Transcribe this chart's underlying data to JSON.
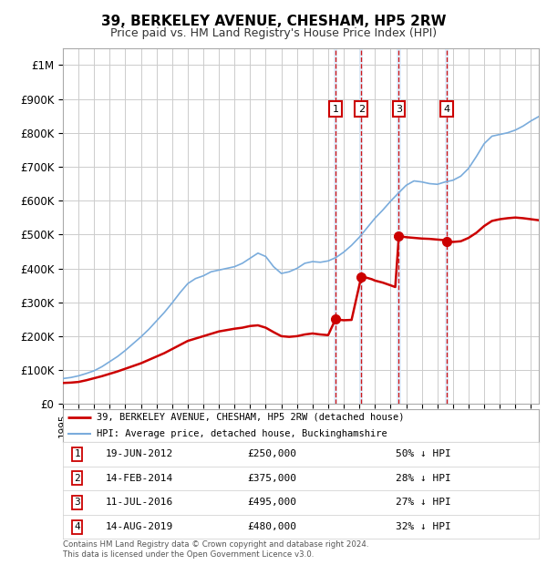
{
  "title": "39, BERKELEY AVENUE, CHESHAM, HP5 2RW",
  "subtitle": "Price paid vs. HM Land Registry's House Price Index (HPI)",
  "xlim_start": 1995.0,
  "xlim_end": 2025.5,
  "ylim": [
    0,
    1050000
  ],
  "yticks": [
    0,
    100000,
    200000,
    300000,
    400000,
    500000,
    600000,
    700000,
    800000,
    900000,
    1000000
  ],
  "ytick_labels": [
    "£0",
    "£100K",
    "£200K",
    "£300K",
    "£400K",
    "£500K",
    "£600K",
    "£700K",
    "£800K",
    "£900K",
    "£1M"
  ],
  "sales": [
    {
      "num": 1,
      "date_decimal": 2012.47,
      "price": 250000,
      "label": "19-JUN-2012",
      "pct": "50% ↓ HPI",
      "price_str": "£250,000"
    },
    {
      "num": 2,
      "date_decimal": 2014.12,
      "price": 375000,
      "label": "14-FEB-2014",
      "pct": "28% ↓ HPI",
      "price_str": "£375,000"
    },
    {
      "num": 3,
      "date_decimal": 2016.53,
      "price": 495000,
      "label": "11-JUL-2016",
      "pct": "27% ↓ HPI",
      "price_str": "£495,000"
    },
    {
      "num": 4,
      "date_decimal": 2019.62,
      "price": 480000,
      "label": "14-AUG-2019",
      "pct": "32% ↓ HPI",
      "price_str": "£480,000"
    }
  ],
  "legend_labels": [
    "39, BERKELEY AVENUE, CHESHAM, HP5 2RW (detached house)",
    "HPI: Average price, detached house, Buckinghamshire"
  ],
  "legend_colors": [
    "#cc0000",
    "#7aacdc"
  ],
  "legend_lws": [
    2.0,
    1.5
  ],
  "footer": "Contains HM Land Registry data © Crown copyright and database right 2024.\nThis data is licensed under the Open Government Licence v3.0.",
  "hpi_color": "#7aacdc",
  "sale_color": "#cc0000",
  "vline_color": "#cc0000",
  "shade_color": "#ddeeff",
  "box_color": "#cc0000",
  "grid_color": "#cccccc",
  "bg_color": "#ffffff",
  "hpi_data": [
    [
      1995.0,
      75000
    ],
    [
      1995.5,
      78000
    ],
    [
      1996.0,
      83000
    ],
    [
      1996.5,
      90000
    ],
    [
      1997.0,
      98000
    ],
    [
      1997.5,
      110000
    ],
    [
      1998.0,
      125000
    ],
    [
      1998.5,
      140000
    ],
    [
      1999.0,
      158000
    ],
    [
      1999.5,
      178000
    ],
    [
      2000.0,
      198000
    ],
    [
      2000.5,
      220000
    ],
    [
      2001.0,
      245000
    ],
    [
      2001.5,
      270000
    ],
    [
      2002.0,
      298000
    ],
    [
      2002.5,
      328000
    ],
    [
      2003.0,
      355000
    ],
    [
      2003.5,
      370000
    ],
    [
      2004.0,
      378000
    ],
    [
      2004.5,
      390000
    ],
    [
      2005.0,
      395000
    ],
    [
      2005.5,
      400000
    ],
    [
      2006.0,
      405000
    ],
    [
      2006.5,
      415000
    ],
    [
      2007.0,
      430000
    ],
    [
      2007.5,
      445000
    ],
    [
      2008.0,
      435000
    ],
    [
      2008.5,
      405000
    ],
    [
      2009.0,
      385000
    ],
    [
      2009.5,
      390000
    ],
    [
      2010.0,
      400000
    ],
    [
      2010.5,
      415000
    ],
    [
      2011.0,
      420000
    ],
    [
      2011.5,
      418000
    ],
    [
      2012.0,
      422000
    ],
    [
      2012.5,
      432000
    ],
    [
      2013.0,
      448000
    ],
    [
      2013.5,
      468000
    ],
    [
      2014.0,
      492000
    ],
    [
      2014.5,
      520000
    ],
    [
      2015.0,
      548000
    ],
    [
      2015.5,
      572000
    ],
    [
      2016.0,
      598000
    ],
    [
      2016.5,
      622000
    ],
    [
      2017.0,
      645000
    ],
    [
      2017.5,
      658000
    ],
    [
      2018.0,
      655000
    ],
    [
      2018.5,
      650000
    ],
    [
      2019.0,
      648000
    ],
    [
      2019.5,
      655000
    ],
    [
      2020.0,
      660000
    ],
    [
      2020.5,
      672000
    ],
    [
      2021.0,
      695000
    ],
    [
      2021.5,
      730000
    ],
    [
      2022.0,
      768000
    ],
    [
      2022.5,
      790000
    ],
    [
      2023.0,
      795000
    ],
    [
      2023.5,
      800000
    ],
    [
      2024.0,
      808000
    ],
    [
      2024.5,
      820000
    ],
    [
      2025.0,
      835000
    ],
    [
      2025.5,
      848000
    ]
  ],
  "sale_data": [
    [
      1995.0,
      62000
    ],
    [
      1995.5,
      63000
    ],
    [
      1996.0,
      65000
    ],
    [
      1996.5,
      70000
    ],
    [
      1997.0,
      76000
    ],
    [
      1997.5,
      82000
    ],
    [
      1998.0,
      89000
    ],
    [
      1998.5,
      96000
    ],
    [
      1999.0,
      104000
    ],
    [
      1999.5,
      112000
    ],
    [
      2000.0,
      120000
    ],
    [
      2000.5,
      130000
    ],
    [
      2001.0,
      140000
    ],
    [
      2001.5,
      150000
    ],
    [
      2002.0,
      162000
    ],
    [
      2002.5,
      174000
    ],
    [
      2003.0,
      186000
    ],
    [
      2003.5,
      193000
    ],
    [
      2004.0,
      200000
    ],
    [
      2004.5,
      207000
    ],
    [
      2005.0,
      214000
    ],
    [
      2005.5,
      218000
    ],
    [
      2006.0,
      222000
    ],
    [
      2006.5,
      225000
    ],
    [
      2007.0,
      230000
    ],
    [
      2007.5,
      232000
    ],
    [
      2008.0,
      225000
    ],
    [
      2008.5,
      212000
    ],
    [
      2009.0,
      200000
    ],
    [
      2009.5,
      198000
    ],
    [
      2010.0,
      200000
    ],
    [
      2010.5,
      205000
    ],
    [
      2011.0,
      208000
    ],
    [
      2011.5,
      205000
    ],
    [
      2012.0,
      203000
    ],
    [
      2012.47,
      250000
    ],
    [
      2012.6,
      250000
    ],
    [
      2012.8,
      248000
    ],
    [
      2013.0,
      247000
    ],
    [
      2013.5,
      248000
    ],
    [
      2014.12,
      375000
    ],
    [
      2014.3,
      374000
    ],
    [
      2014.5,
      372000
    ],
    [
      2014.8,
      368000
    ],
    [
      2015.0,
      364000
    ],
    [
      2015.5,
      358000
    ],
    [
      2016.0,
      350000
    ],
    [
      2016.3,
      345000
    ],
    [
      2016.53,
      495000
    ],
    [
      2016.7,
      494000
    ],
    [
      2017.0,
      492000
    ],
    [
      2017.5,
      490000
    ],
    [
      2018.0,
      488000
    ],
    [
      2018.5,
      487000
    ],
    [
      2019.0,
      485000
    ],
    [
      2019.5,
      483000
    ],
    [
      2019.62,
      480000
    ],
    [
      2019.8,
      479000
    ],
    [
      2020.0,
      478000
    ],
    [
      2020.5,
      480000
    ],
    [
      2021.0,
      490000
    ],
    [
      2021.5,
      505000
    ],
    [
      2022.0,
      525000
    ],
    [
      2022.5,
      540000
    ],
    [
      2023.0,
      545000
    ],
    [
      2023.5,
      548000
    ],
    [
      2024.0,
      550000
    ],
    [
      2024.5,
      548000
    ],
    [
      2025.0,
      545000
    ],
    [
      2025.5,
      542000
    ]
  ]
}
